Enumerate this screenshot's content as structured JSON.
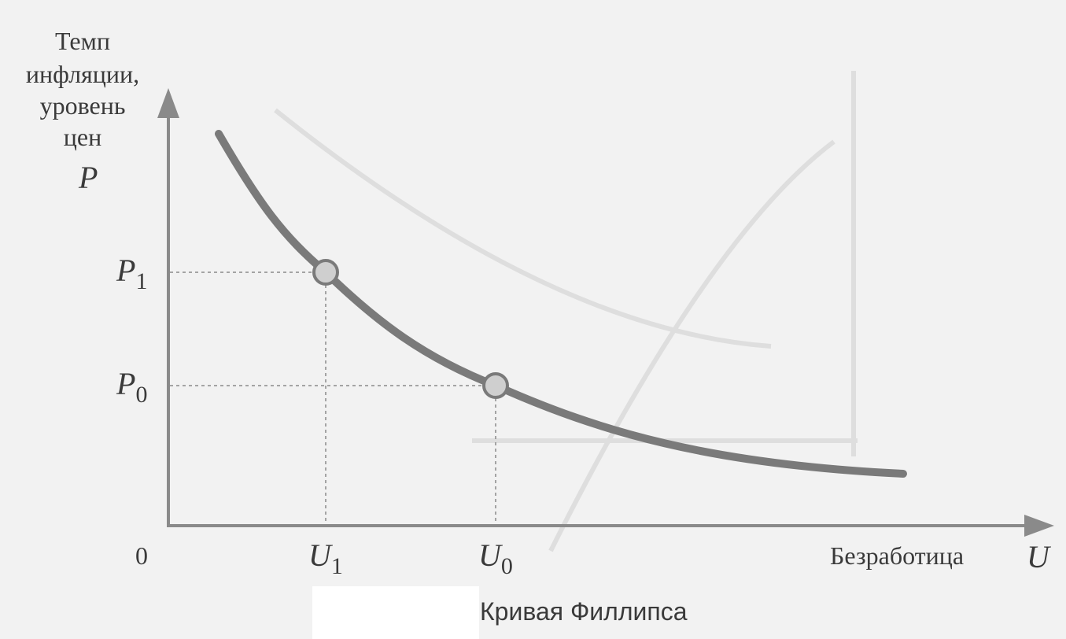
{
  "y_axis": {
    "title_lines": [
      "Темп",
      "инфляции,",
      "уровень",
      "цен"
    ],
    "symbol": "P"
  },
  "x_axis": {
    "title": "Безработица",
    "symbol": "U",
    "origin": "0"
  },
  "points": {
    "p1": {
      "base": "P",
      "sub": "1"
    },
    "p0": {
      "base": "P",
      "sub": "0"
    },
    "u1": {
      "base": "U",
      "sub": "1"
    },
    "u0": {
      "base": "U",
      "sub": "0"
    }
  },
  "caption": "Кривая Филлипса",
  "colors": {
    "curve": "#7a7a7a",
    "axis": "#8a8a8a",
    "marker_fill": "#cfcfcf",
    "guide": "#8a8a8a"
  }
}
